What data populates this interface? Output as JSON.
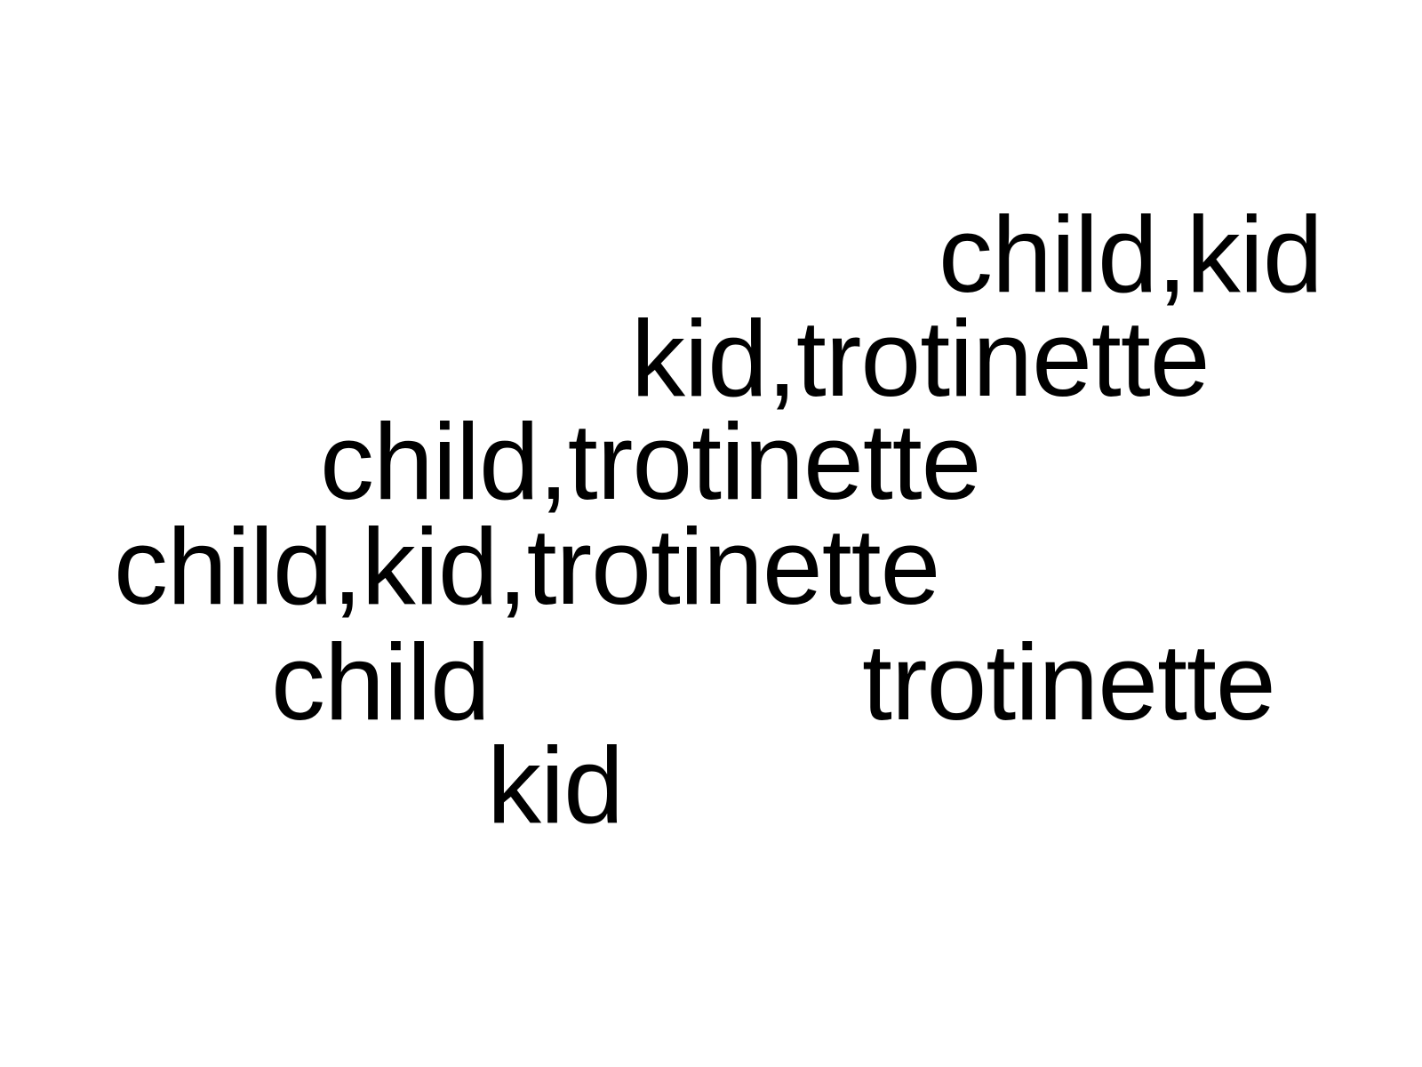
{
  "words": [
    "child,kid",
    "kid,trotinette",
    "child,trotinette",
    "child,kid,trotinette",
    "child",
    "trotinette",
    "kid"
  ],
  "colors": {
    "background": "#ffffff",
    "text": "#000000"
  }
}
